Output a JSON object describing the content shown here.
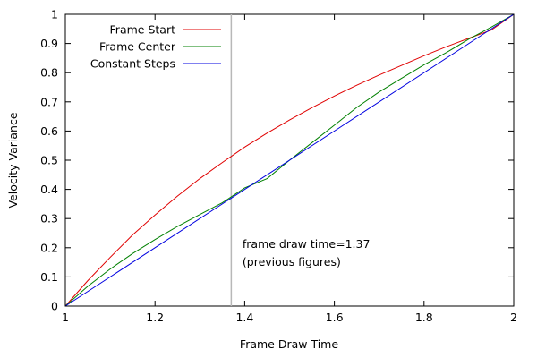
{
  "chart_data": {
    "type": "line",
    "title": "",
    "xlabel": "Frame Draw Time",
    "ylabel": "Velocity Variance",
    "xlim": [
      1,
      2
    ],
    "ylim": [
      0,
      1
    ],
    "grid": false,
    "legend_position": "top-left",
    "xticks": [
      "1",
      "1.2",
      "1.4",
      "1.6",
      "1.8",
      "2"
    ],
    "yticks": [
      "0",
      "0.1",
      "0.2",
      "0.3",
      "0.4",
      "0.5",
      "0.6",
      "0.7",
      "0.8",
      "0.9",
      "1"
    ],
    "series": [
      {
        "name": "Frame Start",
        "color": "#e00000",
        "x": [
          1.0,
          1.05,
          1.1,
          1.15,
          1.2,
          1.25,
          1.3,
          1.35,
          1.4,
          1.45,
          1.5,
          1.55,
          1.6,
          1.65,
          1.7,
          1.75,
          1.8,
          1.85,
          1.9,
          1.95,
          2.0
        ],
        "y": [
          0.0,
          0.087,
          0.167,
          0.244,
          0.312,
          0.377,
          0.437,
          0.492,
          0.545,
          0.593,
          0.638,
          0.68,
          0.72,
          0.757,
          0.792,
          0.825,
          0.858,
          0.889,
          0.918,
          0.946,
          1.0
        ]
      },
      {
        "name": "Frame Center",
        "color": "#008000",
        "x": [
          1.0,
          1.05,
          1.1,
          1.15,
          1.2,
          1.25,
          1.3,
          1.35,
          1.4,
          1.45,
          1.5,
          1.55,
          1.6,
          1.65,
          1.7,
          1.75,
          1.8,
          1.85,
          1.9,
          1.95,
          2.0
        ],
        "y": [
          0.0,
          0.068,
          0.127,
          0.18,
          0.228,
          0.273,
          0.314,
          0.354,
          0.405,
          0.437,
          0.5,
          0.56,
          0.62,
          0.681,
          0.734,
          0.781,
          0.827,
          0.869,
          0.915,
          0.956,
          1.0
        ]
      },
      {
        "name": "Constant Steps",
        "color": "#0000e0",
        "x": [
          1.0,
          2.0
        ],
        "y": [
          0.0,
          1.0
        ]
      }
    ],
    "vline": {
      "x": 1.37,
      "color": "#b8b8b8"
    },
    "annotation": {
      "lines": [
        "frame draw time=1.37",
        "(previous figures)"
      ],
      "x": 1.395,
      "y": 0.2
    }
  }
}
